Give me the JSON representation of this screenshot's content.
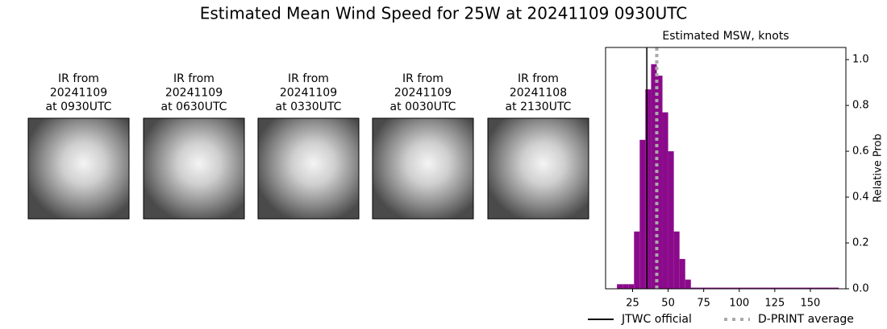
{
  "title": "Estimated Mean Wind Speed for 25W at 20241109 0930UTC",
  "panels": [
    {
      "lines": [
        "IR from",
        "20241109",
        "at 0930UTC"
      ]
    },
    {
      "lines": [
        "IR from",
        "20241109",
        "at 0630UTC"
      ]
    },
    {
      "lines": [
        "IR from",
        "20241109",
        "at 0330UTC"
      ]
    },
    {
      "lines": [
        "IR from",
        "20241109",
        "at 0030UTC"
      ]
    },
    {
      "lines": [
        "IR from",
        "20241108",
        "at 2130UTC"
      ]
    }
  ],
  "chart_data": {
    "type": "histogram",
    "title": "Estimated MSW, knots",
    "ylabel": "Relative Prob",
    "color": "#8b0a8b",
    "bins": [
      14,
      18,
      22,
      26,
      30,
      34,
      38,
      42,
      46,
      50,
      54,
      58,
      62,
      66,
      70,
      74,
      78,
      82,
      86,
      90,
      94,
      98,
      102,
      106,
      110,
      114,
      118,
      122,
      126,
      130,
      134,
      138,
      142,
      146,
      150,
      154,
      158,
      162,
      166,
      170
    ],
    "values": [
      0.02,
      0.02,
      0.02,
      0.25,
      0.65,
      0.87,
      0.98,
      0.93,
      0.77,
      0.6,
      0.25,
      0.13,
      0.04,
      0.005,
      0.005,
      0.005,
      0.005,
      0.005,
      0.005,
      0.005,
      0.005,
      0.005,
      0.005,
      0.005,
      0.005,
      0.005,
      0.005,
      0.005,
      0.005,
      0.005,
      0.005,
      0.005,
      0.005,
      0.005,
      0.005,
      0.005,
      0.005,
      0.005,
      0.005
    ],
    "xlim": [
      6,
      175
    ],
    "xticks": [
      25,
      50,
      75,
      100,
      125,
      150
    ],
    "ylim": [
      0,
      1.053
    ],
    "yticks": [
      {
        "value": 0,
        "label": "0.0"
      },
      {
        "value": 0.2,
        "label": "0.2"
      },
      {
        "value": 0.4,
        "label": "0.4"
      },
      {
        "value": 0.6,
        "label": "0.6"
      },
      {
        "value": 0.8,
        "label": "0.8"
      },
      {
        "value": 1.0,
        "label": "1.0"
      }
    ],
    "lines": [
      {
        "name": "JTWC official",
        "value": 35,
        "color": "#000000",
        "style": "solid"
      },
      {
        "name": "D-PRINT average",
        "value": 42,
        "color": "#aaaaaa",
        "style": "dotted"
      }
    ]
  }
}
